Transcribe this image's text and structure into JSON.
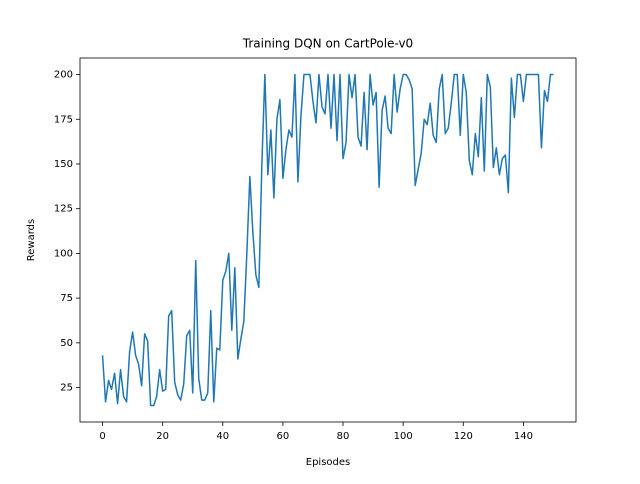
{
  "chart_data": {
    "type": "line",
    "title": "Training DQN on CartPole-v0",
    "x_label": "Episodes",
    "y_label": "Rewards",
    "x": [
      0,
      1,
      2,
      3,
      4,
      5,
      6,
      7,
      8,
      9,
      10,
      11,
      12,
      13,
      14,
      15,
      16,
      17,
      18,
      19,
      20,
      21,
      22,
      23,
      24,
      25,
      26,
      27,
      28,
      29,
      30,
      31,
      32,
      33,
      34,
      35,
      36,
      37,
      38,
      39,
      40,
      41,
      42,
      43,
      44,
      45,
      46,
      47,
      48,
      49,
      50,
      51,
      52,
      53,
      54,
      55,
      56,
      57,
      58,
      59,
      60,
      61,
      62,
      63,
      64,
      65,
      66,
      67,
      68,
      69,
      70,
      71,
      72,
      73,
      74,
      75,
      76,
      77,
      78,
      79,
      80,
      81,
      82,
      83,
      84,
      85,
      86,
      87,
      88,
      89,
      90,
      91,
      92,
      93,
      94,
      95,
      96,
      97,
      98,
      99,
      100,
      101,
      102,
      103,
      104,
      105,
      106,
      107,
      108,
      109,
      110,
      111,
      112,
      113,
      114,
      115,
      116,
      117,
      118,
      119,
      120,
      121,
      122,
      123,
      124,
      125,
      126,
      127,
      128,
      129,
      130,
      131,
      132,
      133,
      134,
      135,
      136,
      137,
      138,
      139,
      140,
      141,
      142,
      143,
      144,
      145,
      146,
      147,
      148,
      149,
      150
    ],
    "series": [
      {
        "color": "#1f77b4",
        "values": [
          43,
          17,
          29,
          24,
          33,
          16,
          35,
          20,
          17,
          45,
          56,
          43,
          38,
          26,
          55,
          51,
          15,
          15,
          20,
          35,
          23,
          24,
          65,
          68,
          28,
          21,
          18,
          27,
          54,
          57,
          22,
          96,
          30,
          18,
          18,
          22,
          68,
          17,
          47,
          46,
          85,
          90,
          100,
          57,
          92,
          41,
          52,
          62,
          100,
          143,
          112,
          88,
          81,
          150,
          200,
          144,
          169,
          131,
          175,
          186,
          142,
          158,
          169,
          165,
          200,
          140,
          177,
          200,
          200,
          200,
          185,
          173,
          200,
          182,
          178,
          200,
          170,
          200,
          163,
          200,
          153,
          162,
          200,
          187,
          200,
          165,
          160,
          190,
          158,
          200,
          183,
          190,
          137,
          180,
          188,
          170,
          167,
          200,
          179,
          192,
          200,
          200,
          197,
          192,
          138,
          147,
          156,
          175,
          172,
          184,
          166,
          162,
          192,
          200,
          167,
          170,
          184,
          200,
          200,
          166,
          200,
          190,
          152,
          144,
          167,
          154,
          187,
          146,
          200,
          193,
          148,
          159,
          144,
          153,
          155,
          134,
          198,
          176,
          200,
          200,
          185,
          200,
          200,
          200,
          200,
          200,
          159,
          191,
          185,
          200,
          200
        ]
      }
    ],
    "xlim": [
      -7.5,
      157.5
    ],
    "ylim": [
      5.75,
      209.25
    ],
    "xticks": [
      0,
      20,
      40,
      60,
      80,
      100,
      120,
      140
    ],
    "yticks": [
      25,
      50,
      75,
      100,
      125,
      150,
      175,
      200
    ]
  }
}
